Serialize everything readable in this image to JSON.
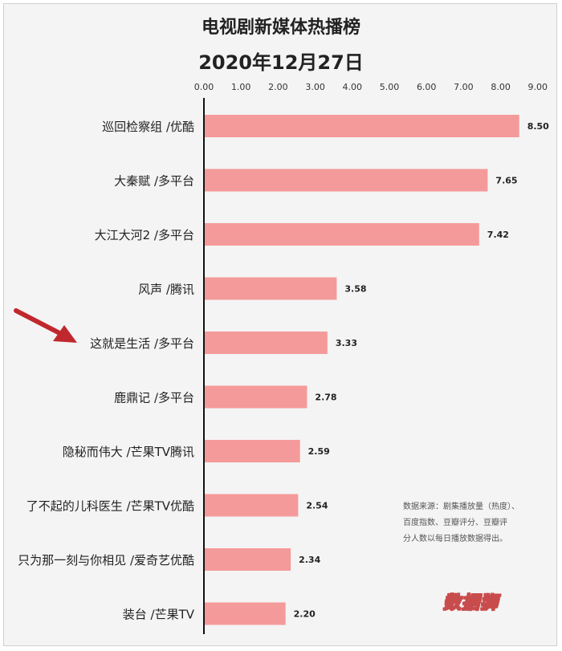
{
  "chart_data": {
    "type": "bar",
    "orientation": "horizontal",
    "title": "电视剧新媒体热播榜",
    "subtitle": "2020年12月27日",
    "categories": [
      "巡回检察组 /优酷",
      "大秦赋 /多平台",
      "大江大河2 /多平台",
      "风声 /腾讯",
      "这就是生活 /多平台",
      "鹿鼎记 /多平台",
      "隐秘而伟大 /芒果TV腾讯",
      "了不起的儿科医生 /芒果TV优酷",
      "只为那一刻与你相见 /爱奇艺优酷",
      "装台 /芒果TV"
    ],
    "values": [
      8.5,
      7.65,
      7.42,
      3.58,
      3.33,
      2.78,
      2.59,
      2.54,
      2.34,
      2.2
    ],
    "value_labels": [
      "8.50",
      "7.65",
      "7.42",
      "3.58",
      "3.33",
      "2.78",
      "2.59",
      "2.54",
      "2.34",
      "2.20"
    ],
    "x_ticks": [
      "0.00",
      "1.00",
      "2.00",
      "3.00",
      "4.00",
      "5.00",
      "6.00",
      "7.00",
      "8.00",
      "9.00"
    ],
    "xlim": [
      0,
      9
    ],
    "axis_position": "top",
    "grid": false,
    "bar_color": "#f59a9a",
    "highlight_category": "这就是生活 /多平台",
    "arrow_color": "#c0282d"
  },
  "source_note": [
    "数据来源：剧集播放量（热度）、",
    "百度指数、豆瓣评分、豆瓣评",
    "分人数以每日播放数据得出。"
  ],
  "watermark": "数据狮"
}
